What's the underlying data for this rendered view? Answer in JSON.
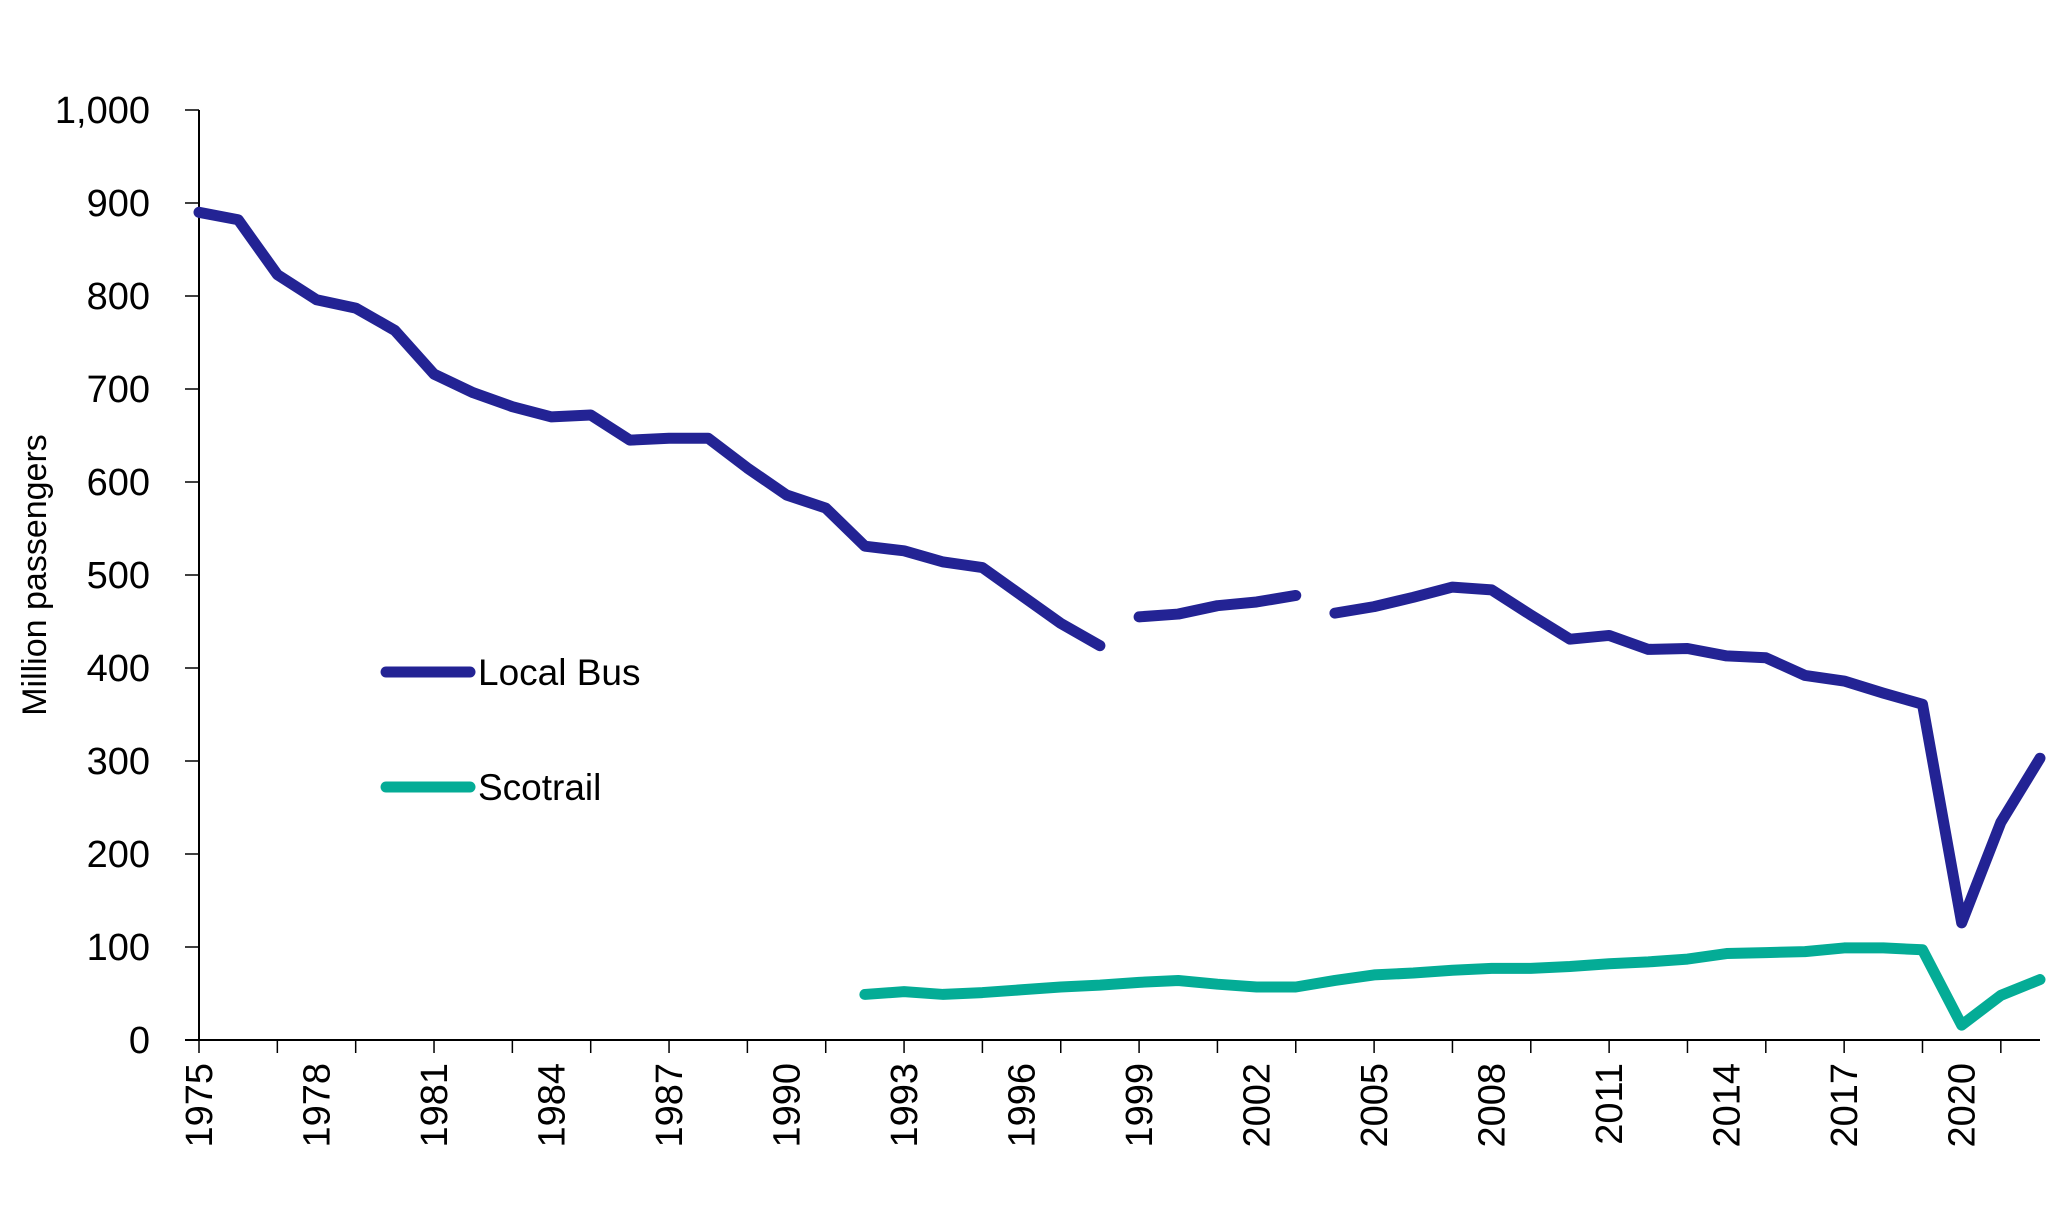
{
  "chart_data": {
    "type": "line",
    "title": "",
    "xlabel": "",
    "ylabel": "Million passengers",
    "ylim": [
      0,
      1000
    ],
    "xlim": [
      1975,
      2022
    ],
    "grid": false,
    "legend_position": "center-left",
    "y_ticks": [
      0,
      100,
      200,
      300,
      400,
      500,
      600,
      700,
      800,
      900,
      1000
    ],
    "y_tick_labels": [
      "0",
      "100",
      "200",
      "300",
      "400",
      "500",
      "600",
      "700",
      "800",
      "900",
      "1,000"
    ],
    "x_tick_labels": [
      "1975",
      "1978",
      "1981",
      "1984",
      "1987",
      "1990",
      "1993",
      "1996",
      "1999",
      "2002",
      "2005",
      "2008",
      "2011",
      "2014",
      "2017",
      "2020"
    ],
    "x": [
      1975,
      1976,
      1977,
      1978,
      1979,
      1980,
      1981,
      1982,
      1983,
      1984,
      1985,
      1986,
      1987,
      1988,
      1989,
      1990,
      1991,
      1992,
      1993,
      1994,
      1995,
      1996,
      1997,
      1998,
      1999,
      2000,
      2001,
      2002,
      2003,
      2004,
      2005,
      2006,
      2007,
      2008,
      2009,
      2010,
      2011,
      2012,
      2013,
      2014,
      2015,
      2016,
      2017,
      2018,
      2019,
      2020,
      2021,
      2022
    ],
    "series": [
      {
        "name": "Local Bus",
        "color": "#232394",
        "values": [
          890,
          882,
          823,
          796,
          787,
          763,
          716,
          696,
          681,
          670,
          672,
          645,
          647,
          647,
          615,
          586,
          572,
          531,
          526,
          514,
          508,
          478,
          448,
          424,
          455,
          458,
          467,
          471,
          478,
          459,
          466,
          476,
          487,
          484,
          457,
          431,
          435,
          420,
          421,
          413,
          411,
          392,
          386,
          373,
          361,
          126,
          234,
          303
        ],
        "breaks_after": [
          1998,
          2003
        ]
      },
      {
        "name": "Scotrail",
        "color": "#04AC96",
        "values": [
          null,
          null,
          null,
          null,
          null,
          null,
          null,
          null,
          null,
          null,
          null,
          null,
          null,
          null,
          null,
          null,
          null,
          49,
          52,
          49,
          51,
          54,
          57,
          59,
          62,
          64,
          60,
          57,
          57,
          64,
          70,
          72,
          75,
          77,
          77,
          79,
          82,
          84,
          87,
          93,
          94,
          95,
          99,
          99,
          97,
          16,
          48,
          65
        ]
      }
    ]
  }
}
